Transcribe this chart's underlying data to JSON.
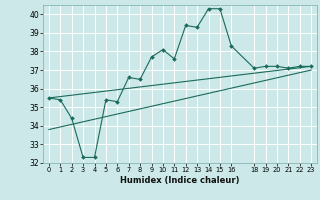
{
  "xlabel": "Humidex (Indice chaleur)",
  "bg_color": "#cce8e8",
  "grid_color": "#ffffff",
  "line_color": "#1a6b5a",
  "xlim": [
    -0.5,
    23.5
  ],
  "ylim": [
    32,
    40.5
  ],
  "yticks": [
    32,
    33,
    34,
    35,
    36,
    37,
    38,
    39,
    40
  ],
  "xticks": [
    0,
    1,
    2,
    3,
    4,
    5,
    6,
    7,
    8,
    9,
    10,
    11,
    12,
    13,
    14,
    15,
    16,
    18,
    19,
    20,
    21,
    22,
    23
  ],
  "line1_x": [
    0,
    1,
    2,
    3,
    4,
    5,
    6,
    7,
    8,
    9,
    10,
    11,
    12,
    13,
    14,
    15,
    16,
    18,
    19,
    20,
    21,
    22,
    23
  ],
  "line1_y": [
    35.5,
    35.4,
    34.4,
    32.3,
    32.3,
    35.4,
    35.3,
    36.6,
    36.5,
    37.7,
    38.1,
    37.6,
    39.4,
    39.3,
    40.3,
    40.3,
    38.3,
    37.1,
    37.2,
    37.2,
    37.1,
    37.2,
    37.2
  ],
  "line2_x": [
    0,
    23
  ],
  "line2_y": [
    35.5,
    37.2
  ],
  "line3_x": [
    0,
    23
  ],
  "line3_y": [
    33.8,
    37.0
  ]
}
